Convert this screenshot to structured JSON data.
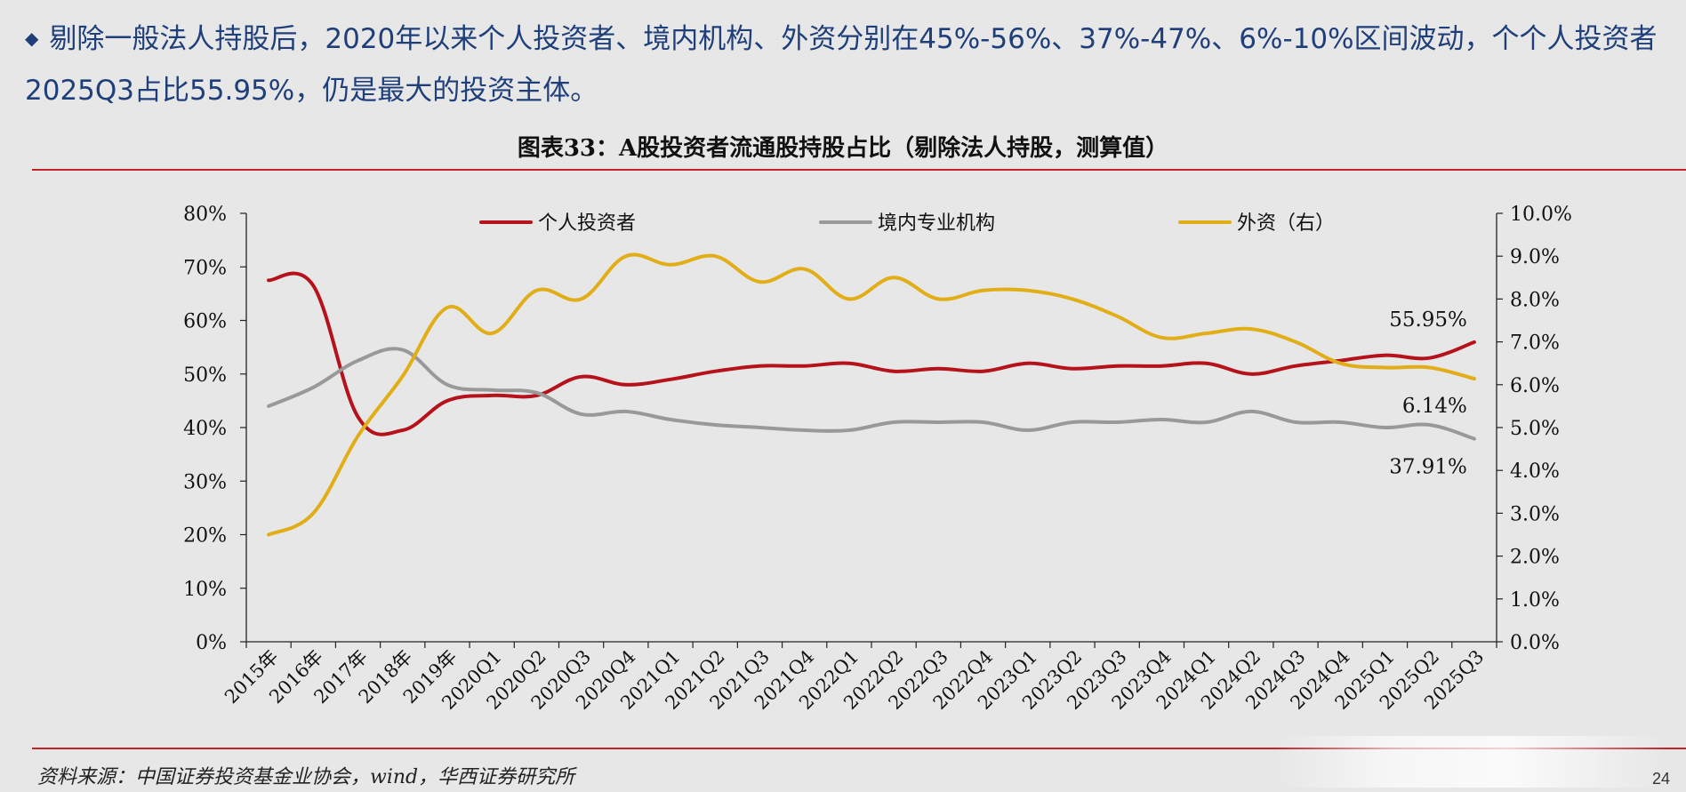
{
  "header": {
    "bullet": "◆",
    "text": "剔除一般法人持股后，2020年以来个人投资者、境内机构、外资分别在45%-56%、37%-47%、6%-10%区间波动，个个人投资者2025Q3占比55.95%，仍是最大的投资主体。"
  },
  "figure": {
    "title": "图表33：A股投资者流通股持股占比（剔除法人持股，测算值）",
    "source": "资料来源：中国证券投资基金业协会，wind，华西证券研究所",
    "page_number": "24"
  },
  "colors": {
    "individual": "#b5121b",
    "domestic": "#999999",
    "foreign": "#e2ae17",
    "rule": "#c0232b"
  },
  "chart_data": {
    "type": "line",
    "categories": [
      "2015年",
      "2016年",
      "2017年",
      "2018年",
      "2019年",
      "2020Q1",
      "2020Q2",
      "2020Q3",
      "2020Q4",
      "2021Q1",
      "2021Q2",
      "2021Q3",
      "2021Q4",
      "2022Q1",
      "2022Q2",
      "2022Q3",
      "2022Q4",
      "2023Q1",
      "2023Q2",
      "2023Q3",
      "2023Q4",
      "2024Q1",
      "2024Q2",
      "2024Q3",
      "2024Q4",
      "2025Q1",
      "2025Q2",
      "2025Q3"
    ],
    "y_left": {
      "ylim": [
        0,
        80
      ],
      "ticks": [
        "0%",
        "10%",
        "20%",
        "30%",
        "40%",
        "50%",
        "60%",
        "70%",
        "80%"
      ]
    },
    "y_right": {
      "ylim": [
        0,
        10
      ],
      "ticks": [
        "0.0%",
        "1.0%",
        "2.0%",
        "3.0%",
        "4.0%",
        "5.0%",
        "6.0%",
        "7.0%",
        "8.0%",
        "9.0%",
        "10.0%"
      ]
    },
    "legend_position": "top",
    "grid": false,
    "series": [
      {
        "name": "个人投资者",
        "axis": "left",
        "color": "#b5121b",
        "values": [
          67.5,
          66.5,
          42.0,
          39.5,
          45.0,
          46.0,
          46.0,
          49.5,
          48.0,
          49.0,
          50.5,
          51.5,
          51.5,
          52.0,
          50.5,
          51.0,
          50.5,
          52.0,
          51.0,
          51.5,
          51.5,
          52.0,
          50.0,
          51.5,
          52.5,
          53.5,
          53.0,
          55.95
        ]
      },
      {
        "name": "境内专业机构",
        "axis": "left",
        "color": "#999999",
        "values": [
          44.0,
          47.5,
          52.5,
          54.5,
          48.0,
          47.0,
          46.5,
          42.5,
          43.0,
          41.5,
          40.5,
          40.0,
          39.5,
          39.5,
          41.0,
          41.0,
          41.0,
          39.5,
          41.0,
          41.0,
          41.5,
          41.0,
          43.0,
          41.0,
          41.0,
          40.0,
          40.5,
          37.91
        ]
      },
      {
        "name": "外资（右）",
        "axis": "right",
        "color": "#e2ae17",
        "values": [
          2.5,
          3.0,
          4.8,
          6.2,
          7.8,
          7.2,
          8.2,
          8.0,
          9.0,
          8.8,
          9.0,
          8.4,
          8.7,
          8.0,
          8.5,
          8.0,
          8.2,
          8.2,
          8.0,
          7.6,
          7.1,
          7.2,
          7.3,
          7.0,
          6.5,
          6.4,
          6.4,
          6.14
        ]
      }
    ],
    "annotations": [
      {
        "series": "个人投资者",
        "text": "55.95%"
      },
      {
        "series": "外资（右）",
        "text": "6.14%"
      },
      {
        "series": "境内专业机构",
        "text": "37.91%"
      }
    ]
  }
}
